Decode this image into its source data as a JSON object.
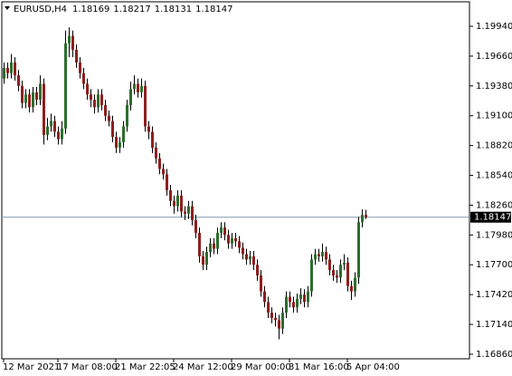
{
  "chart_data": {
    "type": "candlestick",
    "symbol": "EURUSD,H4",
    "categories": [
      "12 Mar 2021",
      null,
      null,
      null,
      null,
      null,
      null,
      null,
      null,
      null,
      null,
      null,
      null,
      null,
      null,
      "17 Mar 08:00",
      null,
      null,
      null,
      null,
      null,
      null,
      null,
      null,
      null,
      null,
      null,
      null,
      null,
      null,
      null,
      "21 Mar 22:05",
      null,
      null,
      null,
      null,
      null,
      null,
      null,
      null,
      null,
      null,
      null,
      null,
      null,
      null,
      null,
      "24 Mar 12:00",
      null,
      null,
      null,
      null,
      null,
      null,
      null,
      null,
      null,
      null,
      null,
      null,
      null,
      null,
      null,
      "29 Mar 00:00",
      null,
      null,
      null,
      null,
      null,
      null,
      null,
      null,
      null,
      null,
      null,
      null,
      null,
      null,
      null,
      "31 Mar 16:00",
      null,
      null,
      null,
      null,
      null,
      null,
      null,
      null,
      null,
      null,
      null,
      null,
      null,
      null,
      null,
      "5 Apr 04:00",
      null,
      null,
      null,
      null,
      null
    ],
    "open": [
      1.1945,
      1.1955,
      1.195,
      1.196,
      1.1948,
      1.1938,
      1.1922,
      1.193,
      1.1918,
      1.1932,
      1.1925,
      1.194,
      1.1892,
      1.19,
      1.1905,
      1.1895,
      1.1888,
      1.1898,
      1.1978,
      1.1985,
      1.1972,
      1.196,
      1.195,
      1.194,
      1.193,
      1.1925,
      1.1918,
      1.193,
      1.192,
      1.191,
      1.1905,
      1.189,
      1.188,
      1.1885,
      1.19,
      1.192,
      1.1935,
      1.194,
      1.1932,
      1.1938,
      1.19,
      1.1895,
      1.188,
      1.187,
      1.186,
      1.1855,
      1.184,
      1.183,
      1.1825,
      1.1835,
      1.182,
      1.1818,
      1.1825,
      1.1812,
      1.18,
      1.1778,
      1.177,
      1.1782,
      1.179,
      1.1785,
      1.18,
      1.1805,
      1.1798,
      1.179,
      1.1795,
      1.1792,
      1.1786,
      1.178,
      1.1775,
      1.1778,
      1.177,
      1.176,
      1.1745,
      1.1735,
      1.1725,
      1.172,
      1.1718,
      1.171,
      1.1725,
      1.174,
      1.1735,
      1.173,
      1.1738,
      1.1742,
      1.1735,
      1.1745,
      1.1775,
      1.178,
      1.1778,
      1.1782,
      1.1775,
      1.1765,
      1.176,
      1.1758,
      1.177,
      1.1772,
      1.175,
      1.1745,
      1.1758,
      1.181,
      1.18169
    ],
    "high": [
      1.196,
      1.196,
      1.1968,
      1.1965,
      1.1953,
      1.1943,
      1.1935,
      1.1935,
      1.1937,
      1.1937,
      1.1948,
      1.1945,
      1.1908,
      1.1912,
      1.191,
      1.19,
      1.1905,
      1.199,
      1.1993,
      1.199,
      1.1977,
      1.1965,
      1.1955,
      1.1945,
      1.1935,
      1.193,
      1.1935,
      1.1935,
      1.1925,
      1.1915,
      1.191,
      1.1895,
      1.189,
      1.1905,
      1.1925,
      1.1942,
      1.1948,
      1.1945,
      1.1945,
      1.1943,
      1.1905,
      1.19,
      1.1885,
      1.1875,
      1.1865,
      1.186,
      1.1845,
      1.1835,
      1.184,
      1.184,
      1.1825,
      1.183,
      1.183,
      1.1817,
      1.1805,
      1.1783,
      1.1787,
      1.1795,
      1.1795,
      1.1805,
      1.181,
      1.181,
      1.1803,
      1.18,
      1.18,
      1.1797,
      1.1791,
      1.1785,
      1.1783,
      1.1783,
      1.1775,
      1.1765,
      1.175,
      1.174,
      1.173,
      1.1725,
      1.1723,
      1.173,
      1.1745,
      1.1745,
      1.174,
      1.1743,
      1.1748,
      1.1747,
      1.175,
      1.178,
      1.1785,
      1.1785,
      1.179,
      1.1787,
      1.178,
      1.177,
      1.1765,
      1.1775,
      1.178,
      1.1777,
      1.1755,
      1.1763,
      1.1815,
      1.1822,
      1.18217
    ],
    "low": [
      1.194,
      1.1945,
      1.1945,
      1.1943,
      1.1933,
      1.1917,
      1.1917,
      1.1913,
      1.1913,
      1.192,
      1.192,
      1.1883,
      1.1887,
      1.1895,
      1.189,
      1.1883,
      1.1883,
      1.1893,
      1.1965,
      1.1965,
      1.1955,
      1.1945,
      1.1935,
      1.1925,
      1.1918,
      1.1912,
      1.1913,
      1.1915,
      1.1905,
      1.19,
      1.1885,
      1.1875,
      1.1875,
      1.188,
      1.1895,
      1.1915,
      1.193,
      1.1927,
      1.1927,
      1.1895,
      1.1888,
      1.1875,
      1.1865,
      1.1855,
      1.185,
      1.1835,
      1.1825,
      1.1818,
      1.182,
      1.1815,
      1.1812,
      1.1813,
      1.1807,
      1.1795,
      1.1772,
      1.1765,
      1.1765,
      1.1777,
      1.178,
      1.178,
      1.1795,
      1.1793,
      1.1785,
      1.1785,
      1.1787,
      1.1781,
      1.1775,
      1.177,
      1.177,
      1.1765,
      1.1755,
      1.174,
      1.173,
      1.172,
      1.1715,
      1.1712,
      1.17,
      1.1705,
      1.172,
      1.173,
      1.1725,
      1.1725,
      1.1733,
      1.173,
      1.173,
      1.174,
      1.177,
      1.1773,
      1.1773,
      1.177,
      1.176,
      1.1755,
      1.1753,
      1.1753,
      1.1765,
      1.1745,
      1.1737,
      1.174,
      1.1752,
      1.1805,
      1.18131
    ],
    "close": [
      1.1955,
      1.195,
      1.196,
      1.1948,
      1.1938,
      1.1922,
      1.193,
      1.1918,
      1.1932,
      1.1925,
      1.194,
      1.1892,
      1.19,
      1.1905,
      1.1895,
      1.1888,
      1.1898,
      1.1978,
      1.1985,
      1.1972,
      1.196,
      1.195,
      1.194,
      1.193,
      1.1925,
      1.1918,
      1.193,
      1.192,
      1.191,
      1.1905,
      1.189,
      1.188,
      1.1885,
      1.19,
      1.192,
      1.1935,
      1.194,
      1.1932,
      1.1938,
      1.19,
      1.1895,
      1.188,
      1.187,
      1.186,
      1.1855,
      1.184,
      1.183,
      1.1825,
      1.1835,
      1.182,
      1.1818,
      1.1825,
      1.1812,
      1.18,
      1.1778,
      1.177,
      1.1782,
      1.179,
      1.1785,
      1.18,
      1.1805,
      1.1798,
      1.179,
      1.1795,
      1.1792,
      1.1786,
      1.178,
      1.1775,
      1.1778,
      1.177,
      1.176,
      1.1745,
      1.1735,
      1.1725,
      1.172,
      1.1718,
      1.171,
      1.1725,
      1.174,
      1.1735,
      1.173,
      1.1738,
      1.1742,
      1.1735,
      1.1745,
      1.1775,
      1.178,
      1.1778,
      1.1782,
      1.1775,
      1.1765,
      1.176,
      1.1758,
      1.177,
      1.1772,
      1.175,
      1.1745,
      1.1758,
      1.181,
      1.18169,
      1.18147
    ],
    "up_color": "#2d6e2d",
    "down_color": "#8e1f1f",
    "wick_color": "#000000",
    "price_line_color": "#7f97ab",
    "ylim": [
      1.16817,
      1.2017
    ],
    "yticks": [
      {
        "value": 1.1994,
        "label": "1.19940"
      },
      {
        "value": 1.1966,
        "label": "1.19660"
      },
      {
        "value": 1.1938,
        "label": "1.19380"
      },
      {
        "value": 1.191,
        "label": "1.19100"
      },
      {
        "value": 1.1882,
        "label": "1.18820"
      },
      {
        "value": 1.1854,
        "label": "1.18540"
      },
      {
        "value": 1.1826,
        "label": "1.18260"
      },
      {
        "value": 1.1798,
        "label": "1.17980"
      },
      {
        "value": 1.177,
        "label": "1.17700"
      },
      {
        "value": 1.1742,
        "label": "1.17420"
      },
      {
        "value": 1.1714,
        "label": "1.17140"
      },
      {
        "value": 1.1686,
        "label": "1.16860"
      }
    ]
  }
}
